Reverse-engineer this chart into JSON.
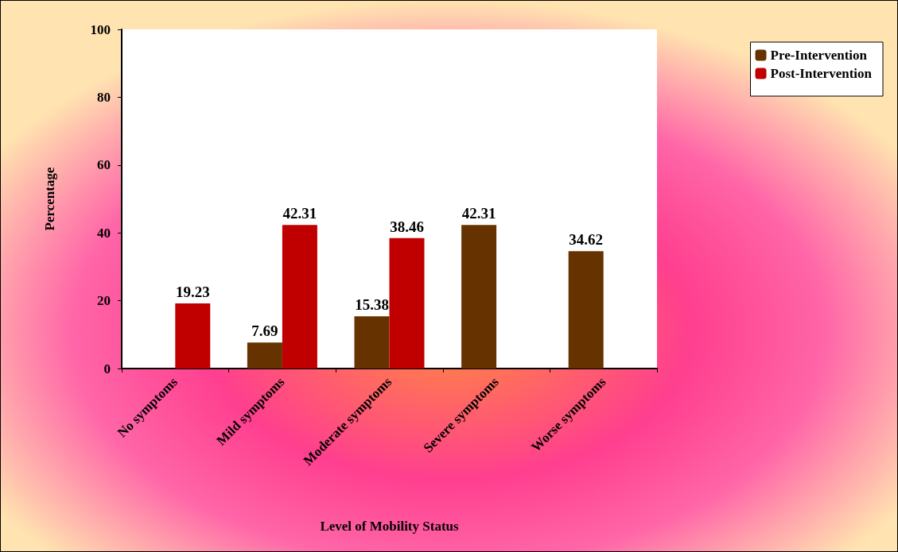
{
  "chart_data": {
    "type": "bar",
    "xlabel": "Level of Mobility Status",
    "ylabel": "Percentage",
    "categories": [
      "No symptoms",
      "Mild symptoms",
      "Moderate symptoms",
      "Severe symptoms",
      "Worse symptoms"
    ],
    "series": [
      {
        "name": "Pre-Intervention",
        "color": "#663300",
        "values": [
          null,
          7.69,
          15.38,
          42.31,
          34.62
        ]
      },
      {
        "name": "Post-Intervention",
        "color": "#c00000",
        "values": [
          19.23,
          42.31,
          38.46,
          null,
          null
        ]
      }
    ],
    "ylim": [
      0,
      100
    ],
    "yticks": [
      0,
      20,
      40,
      60,
      80,
      100
    ],
    "grid": false,
    "legend": "top right",
    "data_labels": true
  }
}
